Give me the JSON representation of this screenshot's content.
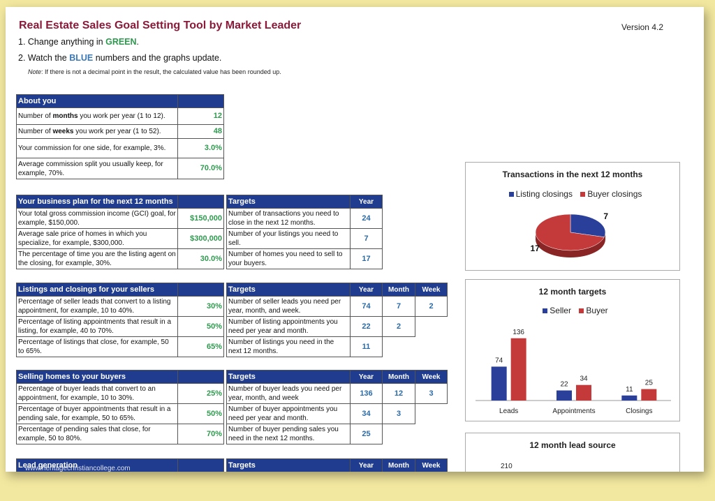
{
  "header": {
    "title": "Real Estate Sales Goal Setting Tool by Market Leader",
    "version": "Version 4.2",
    "step1_prefix": "1.  Change anything in ",
    "step1_highlight": "GREEN",
    "step1_suffix": ".",
    "step2_prefix": "2. Watch the ",
    "step2_highlight": "BLUE",
    "step2_suffix": " numbers and the graphs update.",
    "note_label": "Note",
    "note_text": ": If there is not a decimal point in the result, the calculated value has been rounded up."
  },
  "about": {
    "title": "About you",
    "rows": [
      {
        "pre": "Number of ",
        "bold": "months",
        "post": " you work per year (1 to 12).",
        "value": "12"
      },
      {
        "pre": "Number of ",
        "bold": "weeks",
        "post": " you work per year (1 to 52).",
        "value": "48"
      },
      {
        "pre": "Your commission for one side, for example, 3%.",
        "bold": "",
        "post": "",
        "value": "3.0%"
      },
      {
        "pre": "Average commission split you usually keep, for example, 70%.",
        "bold": "",
        "post": "",
        "value": "70.0%"
      }
    ]
  },
  "plan": {
    "title": "Your business plan for the next 12 months",
    "rows": [
      {
        "label": "Your total gross commission income (GCI) goal, for example,  $150,000.",
        "value": "$150,000"
      },
      {
        "label": "Average sale price of homes in which you specialize, for example, $300,000.",
        "value": "$300,000"
      },
      {
        "label": "The percentage of time you are the listing agent on the closing, for example, 30%.",
        "value": "30.0%"
      }
    ]
  },
  "plan_targets": {
    "title": "Targets",
    "col_year": "Year",
    "rows": [
      {
        "label": "Number of transactions you need to close in the next 12 months.",
        "year": "24"
      },
      {
        "label": "Number of your listings you need to sell.",
        "year": "7"
      },
      {
        "label": "Number of homes you need to sell to your buyers.",
        "year": "17"
      }
    ]
  },
  "sellers": {
    "title": "Listings and closings for your sellers",
    "rows": [
      {
        "label": "Percentage of seller leads that convert to a listing appointment, for example, 10 to 40%.",
        "value": "30%"
      },
      {
        "label": "Percentage of listing appointments that result in a listing, for example, 40 to 70%.",
        "value": "50%"
      },
      {
        "label": "Percentage of listings that close, for example, 50 to 65%.",
        "value": "65%"
      }
    ]
  },
  "seller_targets": {
    "title": "Targets",
    "col_year": "Year",
    "col_month": "Month",
    "col_week": "Week",
    "rows": [
      {
        "label": "Number of seller leads you need per year, month, and week.",
        "year": "74",
        "month": "7",
        "week": "2"
      },
      {
        "label": "Number of listing appointments you need per year and month.",
        "year": "22",
        "month": "2",
        "week": ""
      },
      {
        "label": "Number of listings you need in the next 12 months.",
        "year": "11",
        "month": "",
        "week": ""
      }
    ]
  },
  "buyers": {
    "title": "Selling homes to your buyers",
    "rows": [
      {
        "label": "Percentage of buyer leads that convert to an appointment, for example, 10 to 30%.",
        "value": "25%"
      },
      {
        "label": "Percentage of buyer appointments that result in a pending sale, for example, 50 to 65%.",
        "value": "50%"
      },
      {
        "label": "Percentage of pending sales that close, for example, 50 to 80%.",
        "value": "70%"
      }
    ]
  },
  "buyer_targets": {
    "title": "Targets",
    "col_year": "Year",
    "col_month": "Month",
    "col_week": "Week",
    "rows": [
      {
        "label": "Number of buyer leads you need per year, month, and week",
        "year": "136",
        "month": "12",
        "week": "3"
      },
      {
        "label": "Number of buyer appointments you need per year and month.",
        "year": "34",
        "month": "3",
        "week": ""
      },
      {
        "label": "Number of buyer pending sales you need in the next 12 months.",
        "year": "25",
        "month": "",
        "week": ""
      }
    ]
  },
  "leadgen": {
    "title": "Lead generation"
  },
  "leadgen_targets": {
    "title": "Targets",
    "col_year": "Year",
    "col_month": "Month",
    "col_week": "Week"
  },
  "watermark": "www.heritagechristiancollege.com",
  "colors": {
    "header_blue": "#1f3c8f",
    "green_value": "#2e9a4e",
    "blue_value": "#2a6aa8",
    "title": "#8b1a3a",
    "seller": "#2a3f9a",
    "buyer": "#c43a3a"
  },
  "chart_data": [
    {
      "type": "pie",
      "title": "Transactions in the next 12 months",
      "labels": [
        "Listing closings",
        "Buyer closings"
      ],
      "values": [
        7,
        17
      ],
      "legend": "top"
    },
    {
      "type": "bar",
      "title": "12 month targets",
      "categories": [
        "Leads",
        "Appointments",
        "Closings"
      ],
      "series": [
        {
          "name": "Seller",
          "values": [
            74,
            22,
            11
          ]
        },
        {
          "name": "Buyer",
          "values": [
            136,
            34,
            25
          ]
        }
      ],
      "ylim": [
        0,
        160
      ],
      "grid": false,
      "legend": "top"
    },
    {
      "type": "bar",
      "title": "12 month lead source",
      "values": [
        210
      ]
    }
  ]
}
